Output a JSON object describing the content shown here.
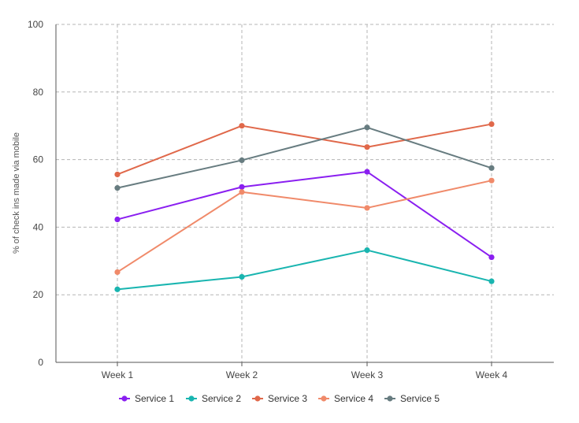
{
  "chart_data": {
    "type": "line",
    "title": "",
    "xlabel": "",
    "ylabel": "% of check ins made via mobile",
    "categories": [
      "Week 1",
      "Week 2",
      "Week 3",
      "Week 4"
    ],
    "ylim": [
      0,
      100
    ],
    "yticks": [
      0,
      20,
      40,
      60,
      80,
      100
    ],
    "grid": true,
    "legend_position": "bottom",
    "series": [
      {
        "name": "Service 1",
        "color": "#8a1ff0",
        "values": [
          42.3,
          51.9,
          56.4,
          31.1
        ]
      },
      {
        "name": "Service 2",
        "color": "#19b5b0",
        "values": [
          21.6,
          25.3,
          33.2,
          24.0
        ]
      },
      {
        "name": "Service 3",
        "color": "#e0684a",
        "values": [
          55.6,
          70.0,
          63.7,
          70.5
        ]
      },
      {
        "name": "Service 4",
        "color": "#f08a6a",
        "values": [
          26.7,
          50.4,
          45.7,
          53.8
        ]
      },
      {
        "name": "Service 5",
        "color": "#677c80",
        "values": [
          51.6,
          59.8,
          69.5,
          57.5
        ]
      }
    ]
  }
}
